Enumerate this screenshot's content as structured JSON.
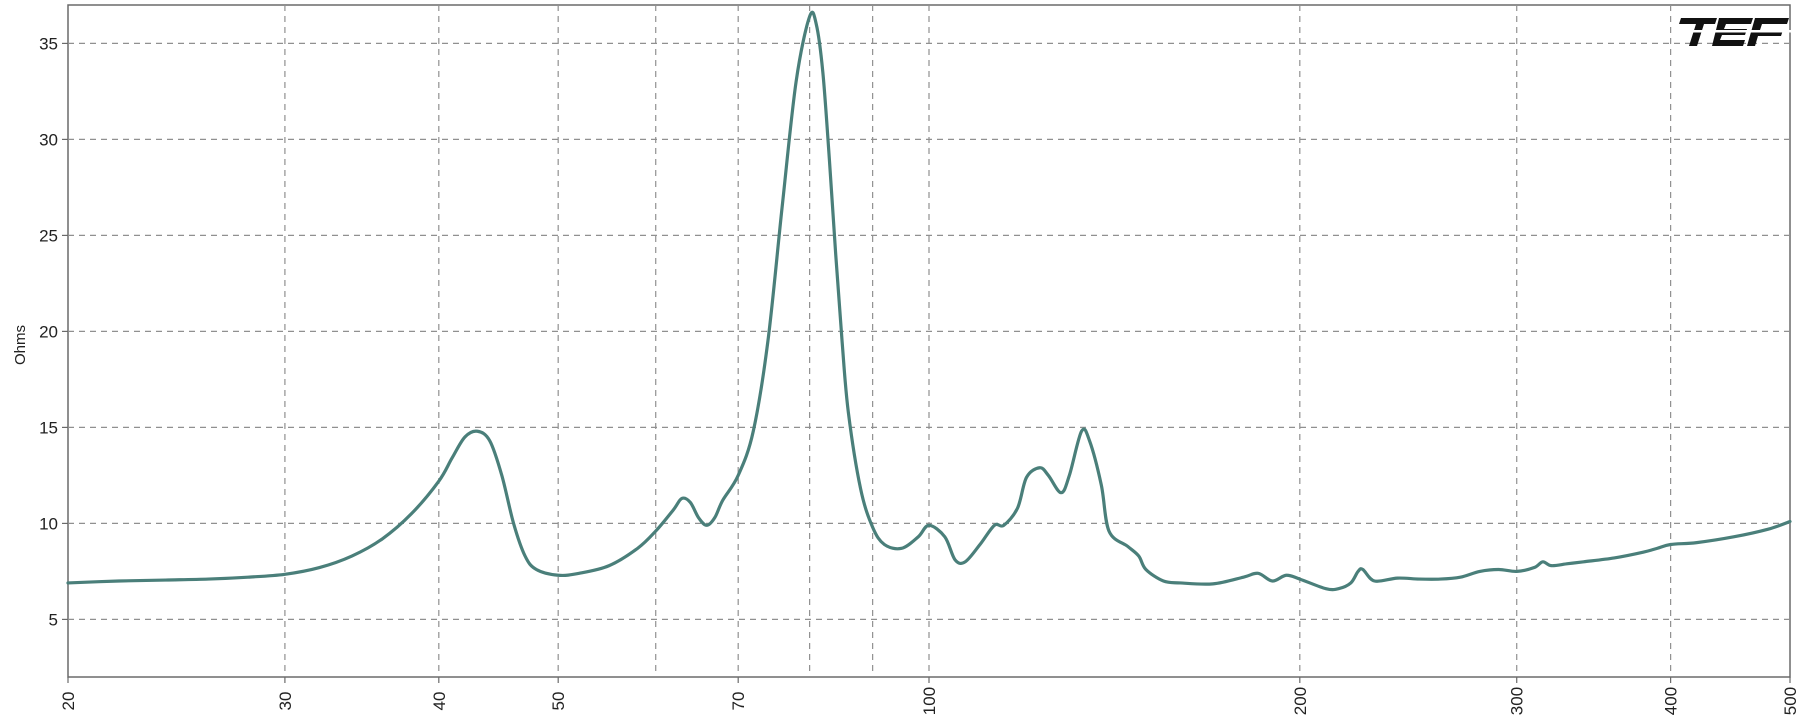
{
  "chart_data": {
    "type": "line",
    "title": "",
    "xlabel": "",
    "ylabel": "Ohms",
    "x_scale": "log",
    "xlim": [
      20,
      500
    ],
    "ylim": [
      2,
      37
    ],
    "grid": true,
    "x_ticks": [
      20,
      30,
      40,
      50,
      70,
      100,
      200,
      300,
      400,
      500
    ],
    "x_minor_gridlines": [
      60,
      80,
      90
    ],
    "y_ticks": [
      5,
      10,
      15,
      20,
      25,
      30,
      35
    ],
    "logo_text": "TEF",
    "colors": {
      "line": "#4a7f7a",
      "grid": "#909090",
      "logo": "#111111"
    },
    "series": [
      {
        "x": [
          20,
          22,
          24,
          26,
          28,
          30,
          32,
          34,
          36,
          38,
          40,
          41,
          42,
          43,
          44,
          45,
          46,
          47,
          48,
          50,
          52,
          55,
          58,
          60,
          62,
          63,
          64,
          65,
          66,
          67,
          68,
          70,
          72,
          74,
          76,
          78,
          80,
          81,
          82,
          83,
          84,
          85,
          86,
          88,
          90,
          92,
          95,
          98,
          100,
          103,
          105,
          107,
          110,
          113,
          115,
          118,
          120,
          123,
          125,
          128,
          130,
          133,
          135,
          138,
          140,
          145,
          148,
          150,
          155,
          160,
          170,
          180,
          185,
          190,
          195,
          200,
          210,
          215,
          220,
          223,
          225,
          230,
          240,
          250,
          260,
          270,
          280,
          290,
          300,
          310,
          315,
          320,
          330,
          340,
          360,
          380,
          390,
          400,
          420,
          450,
          480,
          500
        ],
        "y": [
          6.9,
          7.0,
          7.05,
          7.1,
          7.2,
          7.35,
          7.7,
          8.3,
          9.2,
          10.5,
          12.2,
          13.4,
          14.5,
          14.8,
          14.3,
          12.5,
          10.0,
          8.3,
          7.6,
          7.3,
          7.4,
          7.8,
          8.7,
          9.6,
          10.7,
          11.3,
          11.1,
          10.3,
          9.9,
          10.3,
          11.2,
          12.5,
          14.8,
          19.5,
          26.5,
          33.0,
          36.4,
          36.0,
          33.5,
          29.0,
          24.0,
          19.5,
          15.8,
          11.8,
          9.8,
          8.9,
          8.7,
          9.3,
          9.9,
          9.3,
          8.1,
          8.0,
          8.9,
          9.9,
          9.9,
          10.8,
          12.4,
          12.9,
          12.5,
          11.6,
          12.5,
          14.8,
          14.3,
          12.0,
          9.6,
          8.8,
          8.3,
          7.6,
          7.0,
          6.9,
          6.85,
          7.2,
          7.4,
          7.0,
          7.3,
          7.1,
          6.6,
          6.6,
          6.9,
          7.5,
          7.6,
          7.0,
          7.15,
          7.1,
          7.1,
          7.2,
          7.5,
          7.6,
          7.5,
          7.7,
          8.0,
          7.8,
          7.9,
          8.0,
          8.2,
          8.5,
          8.7,
          8.9,
          9.0,
          9.3,
          9.7,
          10.1
        ]
      }
    ]
  }
}
